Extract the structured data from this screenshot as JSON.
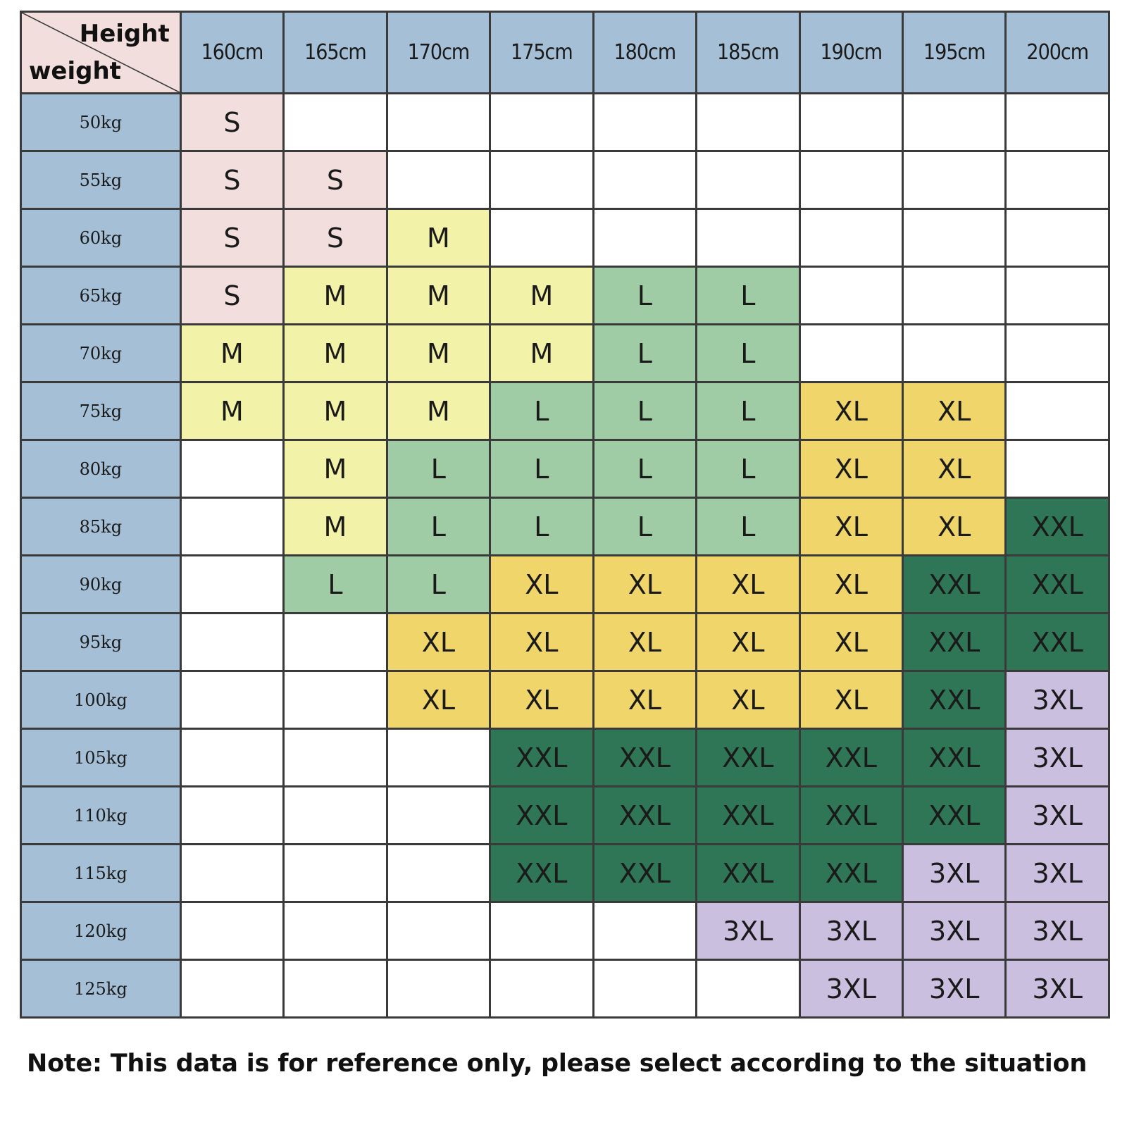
{
  "corner": {
    "height_label": "Height",
    "weight_label": "weight"
  },
  "heights": [
    "160cm",
    "165cm",
    "170cm",
    "175cm",
    "180cm",
    "185cm",
    "190cm",
    "195cm",
    "200cm"
  ],
  "rows": [
    {
      "weight": "50kg",
      "sizes": [
        "S",
        "",
        "",
        "",
        "",
        "",
        "",
        "",
        ""
      ]
    },
    {
      "weight": "55kg",
      "sizes": [
        "S",
        "S",
        "",
        "",
        "",
        "",
        "",
        "",
        ""
      ]
    },
    {
      "weight": "60kg",
      "sizes": [
        "S",
        "S",
        "M",
        "",
        "",
        "",
        "",
        "",
        ""
      ]
    },
    {
      "weight": "65kg",
      "sizes": [
        "S",
        "M",
        "M",
        "M",
        "L",
        "L",
        "",
        "",
        ""
      ]
    },
    {
      "weight": "70kg",
      "sizes": [
        "M",
        "M",
        "M",
        "M",
        "L",
        "L",
        "",
        "",
        ""
      ]
    },
    {
      "weight": "75kg",
      "sizes": [
        "M",
        "M",
        "M",
        "L",
        "L",
        "L",
        "XL",
        "XL",
        ""
      ]
    },
    {
      "weight": "80kg",
      "sizes": [
        "",
        "M",
        "L",
        "L",
        "L",
        "L",
        "XL",
        "XL",
        ""
      ]
    },
    {
      "weight": "85kg",
      "sizes": [
        "",
        "M",
        "L",
        "L",
        "L",
        "L",
        "XL",
        "XL",
        "XXL"
      ]
    },
    {
      "weight": "90kg",
      "sizes": [
        "",
        "L",
        "L",
        "XL",
        "XL",
        "XL",
        "XL",
        "XXL",
        "XXL"
      ]
    },
    {
      "weight": "95kg",
      "sizes": [
        "",
        "",
        "XL",
        "XL",
        "XL",
        "XL",
        "XL",
        "XXL",
        "XXL"
      ]
    },
    {
      "weight": "100kg",
      "sizes": [
        "",
        "",
        "XL",
        "XL",
        "XL",
        "XL",
        "XL",
        "XXL",
        "3XL"
      ]
    },
    {
      "weight": "105kg",
      "sizes": [
        "",
        "",
        "",
        "XXL",
        "XXL",
        "XXL",
        "XXL",
        "XXL",
        "3XL"
      ]
    },
    {
      "weight": "110kg",
      "sizes": [
        "",
        "",
        "",
        "XXL",
        "XXL",
        "XXL",
        "XXL",
        "XXL",
        "3XL"
      ]
    },
    {
      "weight": "115kg",
      "sizes": [
        "",
        "",
        "",
        "XXL",
        "XXL",
        "XXL",
        "XXL",
        "3XL",
        "3XL"
      ]
    },
    {
      "weight": "120kg",
      "sizes": [
        "",
        "",
        "",
        "",
        "",
        "3XL",
        "3XL",
        "3XL",
        "3XL"
      ]
    },
    {
      "weight": "125kg",
      "sizes": [
        "",
        "",
        "",
        "",
        "",
        "",
        "3XL",
        "3XL",
        "3XL"
      ]
    }
  ],
  "size_colors": {
    "S": "#f3dede",
    "M": "#f2f2a8",
    "L": "#9fcca4",
    "XL": "#f0d56b",
    "XXL": "#2f7656",
    "3XL": "#cbbfe0",
    "header": "#a4bfd6",
    "grid": "#3a3a3a"
  },
  "note": "Note: This data is for reference only, please select according to the situation"
}
